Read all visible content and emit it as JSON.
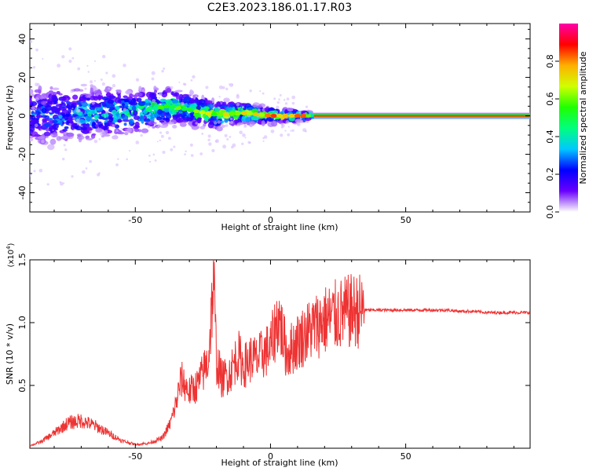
{
  "title": "C2E3.2023.186.01.17.R03",
  "chart_data": [
    {
      "type": "heatmap",
      "xlabel": "Height of straight line (km)",
      "ylabel": "Frequency (Hz)",
      "xlim": [
        -89,
        96
      ],
      "ylim": [
        -50,
        48
      ],
      "x_ticks": [
        -50,
        0,
        50
      ],
      "x_tick_labels": [
        "-50",
        "0",
        "50"
      ],
      "y_ticks": [
        -40,
        -20,
        0,
        20,
        40
      ],
      "y_tick_labels": [
        "-40",
        "-20",
        "0",
        "20",
        "40"
      ],
      "ridge": {
        "description_points": [
          [
            -85,
            0
          ],
          [
            -70,
            1
          ],
          [
            -50,
            2
          ],
          [
            -38,
            5
          ],
          [
            -30,
            3
          ],
          [
            -20,
            0.5
          ],
          [
            -10,
            1.5
          ],
          [
            0,
            0
          ],
          [
            14,
            0
          ],
          [
            96,
            0
          ]
        ],
        "steady_from": 14
      },
      "grid": false
    },
    {
      "type": "colorbar",
      "label": "Normalized spectral amplitude",
      "range": [
        0,
        1
      ],
      "ticks": [
        0.0,
        0.2,
        0.4,
        0.6,
        0.8
      ],
      "tick_labels": [
        "0.0",
        "0.2",
        "0.4",
        "0.6",
        "0.8"
      ],
      "colormap": [
        "#ffffff",
        "#6a00ff",
        "#0000ff",
        "#00c8ff",
        "#00ff7f",
        "#20ff00",
        "#d0ff00",
        "#ffb000",
        "#ff0000",
        "#ff00aa"
      ]
    },
    {
      "type": "line",
      "xlabel": "Height of straight line (km)",
      "ylabel": "SNR (10 * v/v)",
      "y_multiplier": "(x10",
      "y_multiplier_exp": "4",
      "y_multiplier_close": ")",
      "xlim": [
        -89,
        96
      ],
      "ylim": [
        0,
        1.5
      ],
      "x_ticks": [
        -50,
        0,
        50
      ],
      "x_tick_labels": [
        "-50",
        "0",
        "50"
      ],
      "y_ticks": [
        0.5,
        1.0,
        1.5
      ],
      "y_tick_labels": [
        "0.5",
        "1.0",
        "1.5"
      ],
      "series": [
        {
          "color": "#ee3333",
          "x": [
            -89,
            -85,
            -80,
            -75,
            -70,
            -65,
            -60,
            -55,
            -50,
            -45,
            -40,
            -37,
            -35,
            -33,
            -30,
            -27,
            -25,
            -23,
            -21,
            -20,
            -18,
            -15,
            -12,
            -10,
            -7,
            -5,
            -3,
            0,
            3,
            6,
            10,
            15,
            20,
            25,
            30,
            35,
            40,
            45,
            50,
            55,
            60,
            65,
            70,
            75,
            80,
            85,
            90,
            96
          ],
          "y": [
            0.02,
            0.05,
            0.12,
            0.2,
            0.22,
            0.18,
            0.12,
            0.06,
            0.03,
            0.04,
            0.08,
            0.2,
            0.35,
            0.55,
            0.45,
            0.5,
            0.6,
            0.7,
            1.35,
            0.7,
            0.55,
            0.6,
            0.75,
            0.65,
            0.72,
            0.7,
            0.75,
            0.8,
            1.05,
            0.75,
            0.85,
            0.95,
            1.02,
            1.06,
            1.09,
            1.1,
            1.1,
            1.1,
            1.1,
            1.1,
            1.1,
            1.1,
            1.09,
            1.09,
            1.08,
            1.08,
            1.08,
            1.08
          ]
        }
      ]
    }
  ]
}
